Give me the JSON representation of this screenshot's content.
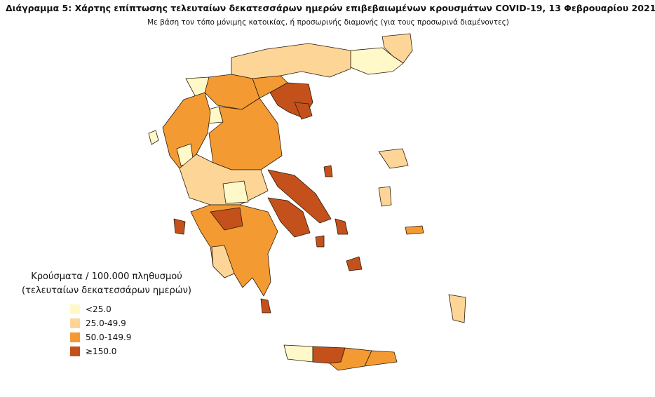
{
  "title": "Διάγραμμα 5: Χάρτης επίπτωσης τελευταίων δεκατεσσάρων ημερών επιβεβαιωμένων κρουσμάτων COVID-19, 13 Φεβρουαρίου 2021",
  "subtitle": "Με βάση τον τόπο μόνιμης κατοικίας, ή προσωρινής διαμονής (για τους προσωρινά διαμένοντες)",
  "legend": {
    "title_lines": [
      "Κρούσματα / 100.000 πληθυσμού",
      "(τελευταίων δεκατεσσάρων ημερών)"
    ],
    "items": [
      {
        "label": "<25.0",
        "color": "#fff9c9"
      },
      {
        "label": "25.0-49.9",
        "color": "#fdd597"
      },
      {
        "label": "50.0-149.9",
        "color": "#f39a33"
      },
      {
        "label": "≥150.0",
        "color": "#c4511b"
      }
    ]
  }
}
